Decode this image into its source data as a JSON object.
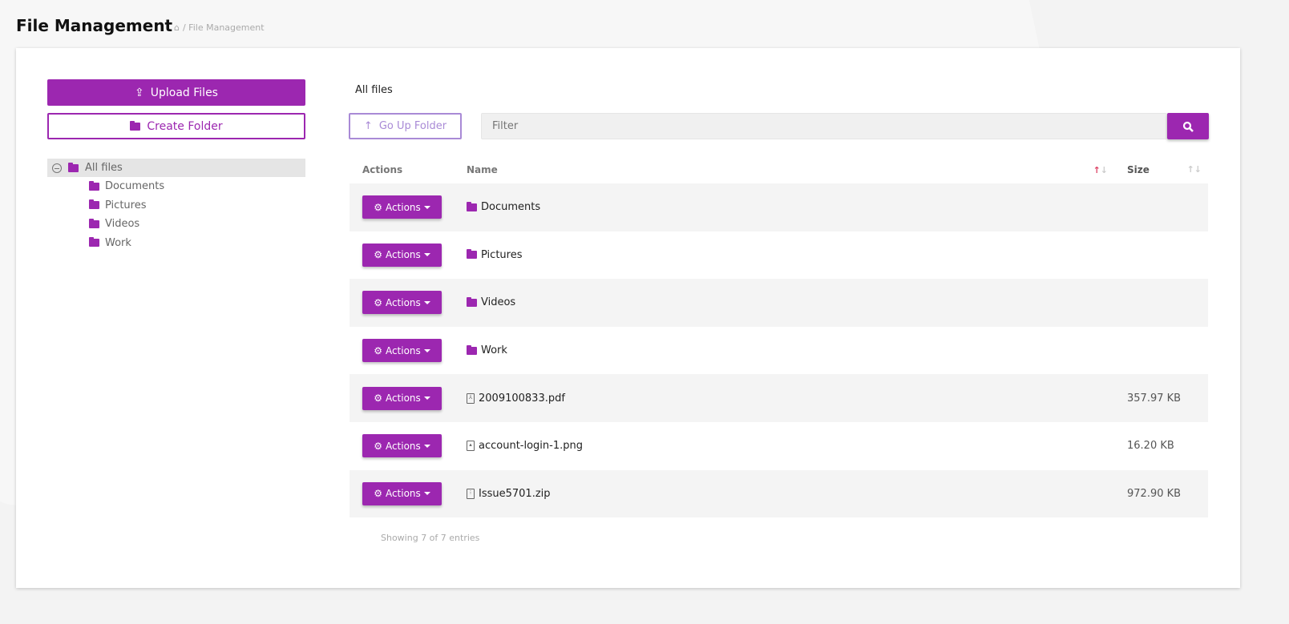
{
  "header": {
    "title": "File Management",
    "breadcrumb": "/ File Management",
    "home_icon": "home-icon"
  },
  "sidebar": {
    "upload_label": "Upload Files",
    "create_label": "Create Folder",
    "tree": {
      "root": "All files",
      "children": [
        "Documents",
        "Pictures",
        "Videos",
        "Work"
      ]
    }
  },
  "main": {
    "current_path": "All files",
    "go_up_label": "Go Up Folder",
    "filter_placeholder": "Filter",
    "columns": {
      "actions": "Actions",
      "name": "Name",
      "size": "Size"
    },
    "rows": [
      {
        "type": "folder",
        "name": "Documents",
        "size": ""
      },
      {
        "type": "folder",
        "name": "Pictures",
        "size": ""
      },
      {
        "type": "folder",
        "name": "Videos",
        "size": ""
      },
      {
        "type": "folder",
        "name": "Work",
        "size": ""
      },
      {
        "type": "pdf",
        "name": "2009100833.pdf",
        "size": "357.97 KB"
      },
      {
        "type": "image",
        "name": "account-login-1.png",
        "size": "16.20 KB"
      },
      {
        "type": "zip",
        "name": "Issue5701.zip",
        "size": "972.90 KB"
      }
    ],
    "action_label": "Actions",
    "footer": "Showing 7 of 7 entries"
  },
  "colors": {
    "accent": "#9c27b0",
    "go_up": "#a98ad6"
  }
}
